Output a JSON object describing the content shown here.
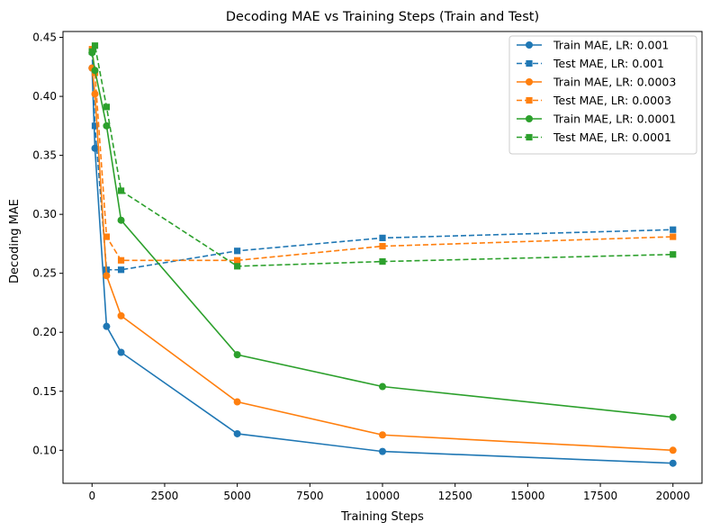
{
  "chart_data": {
    "type": "line",
    "title": "Decoding MAE vs Training Steps (Train and Test)",
    "xlabel": "Training Steps",
    "ylabel": "Decoding MAE",
    "xlim": [
      -1000,
      21000
    ],
    "ylim": [
      0.072,
      0.455
    ],
    "xticks": [
      0,
      2500,
      5000,
      7500,
      10000,
      12500,
      15000,
      17500,
      20000
    ],
    "yticks": [
      0.1,
      0.15,
      0.2,
      0.25,
      0.3,
      0.35,
      0.4,
      0.45
    ],
    "xtick_labels": [
      "0",
      "2500",
      "5000",
      "7500",
      "10000",
      "12500",
      "15000",
      "17500",
      "20000"
    ],
    "ytick_labels": [
      "0.10",
      "0.15",
      "0.20",
      "0.25",
      "0.30",
      "0.35",
      "0.40",
      "0.45"
    ],
    "grid": false,
    "legend_position": "top-right",
    "x": [
      0,
      100,
      500,
      1000,
      5000,
      10000,
      20000
    ],
    "series": [
      {
        "name": "Train MAE, LR: 0.001",
        "color": "#1f77b4",
        "linestyle": "solid",
        "marker": "circle",
        "values": [
          0.424,
          0.356,
          0.205,
          0.183,
          0.114,
          0.099,
          0.089
        ]
      },
      {
        "name": "Test MAE, LR: 0.001",
        "color": "#1f77b4",
        "linestyle": "dashed",
        "marker": "square",
        "values": [
          0.438,
          0.375,
          0.253,
          0.253,
          0.269,
          0.28,
          0.287
        ]
      },
      {
        "name": "Train MAE, LR: 0.0003",
        "color": "#ff7f0e",
        "linestyle": "solid",
        "marker": "circle",
        "values": [
          0.424,
          0.402,
          0.248,
          0.214,
          0.141,
          0.113,
          0.1
        ]
      },
      {
        "name": "Test MAE, LR: 0.0003",
        "color": "#ff7f0e",
        "linestyle": "dashed",
        "marker": "square",
        "values": [
          0.44,
          0.42,
          0.281,
          0.261,
          0.261,
          0.273,
          0.281
        ]
      },
      {
        "name": "Train MAE, LR: 0.0001",
        "color": "#2ca02c",
        "linestyle": "solid",
        "marker": "circle",
        "values": [
          0.437,
          0.422,
          0.375,
          0.295,
          0.181,
          0.154,
          0.128
        ]
      },
      {
        "name": "Test MAE, LR: 0.0001",
        "color": "#2ca02c",
        "linestyle": "dashed",
        "marker": "square",
        "values": [
          0.438,
          0.443,
          0.391,
          0.32,
          0.256,
          0.26,
          0.266
        ]
      }
    ]
  }
}
